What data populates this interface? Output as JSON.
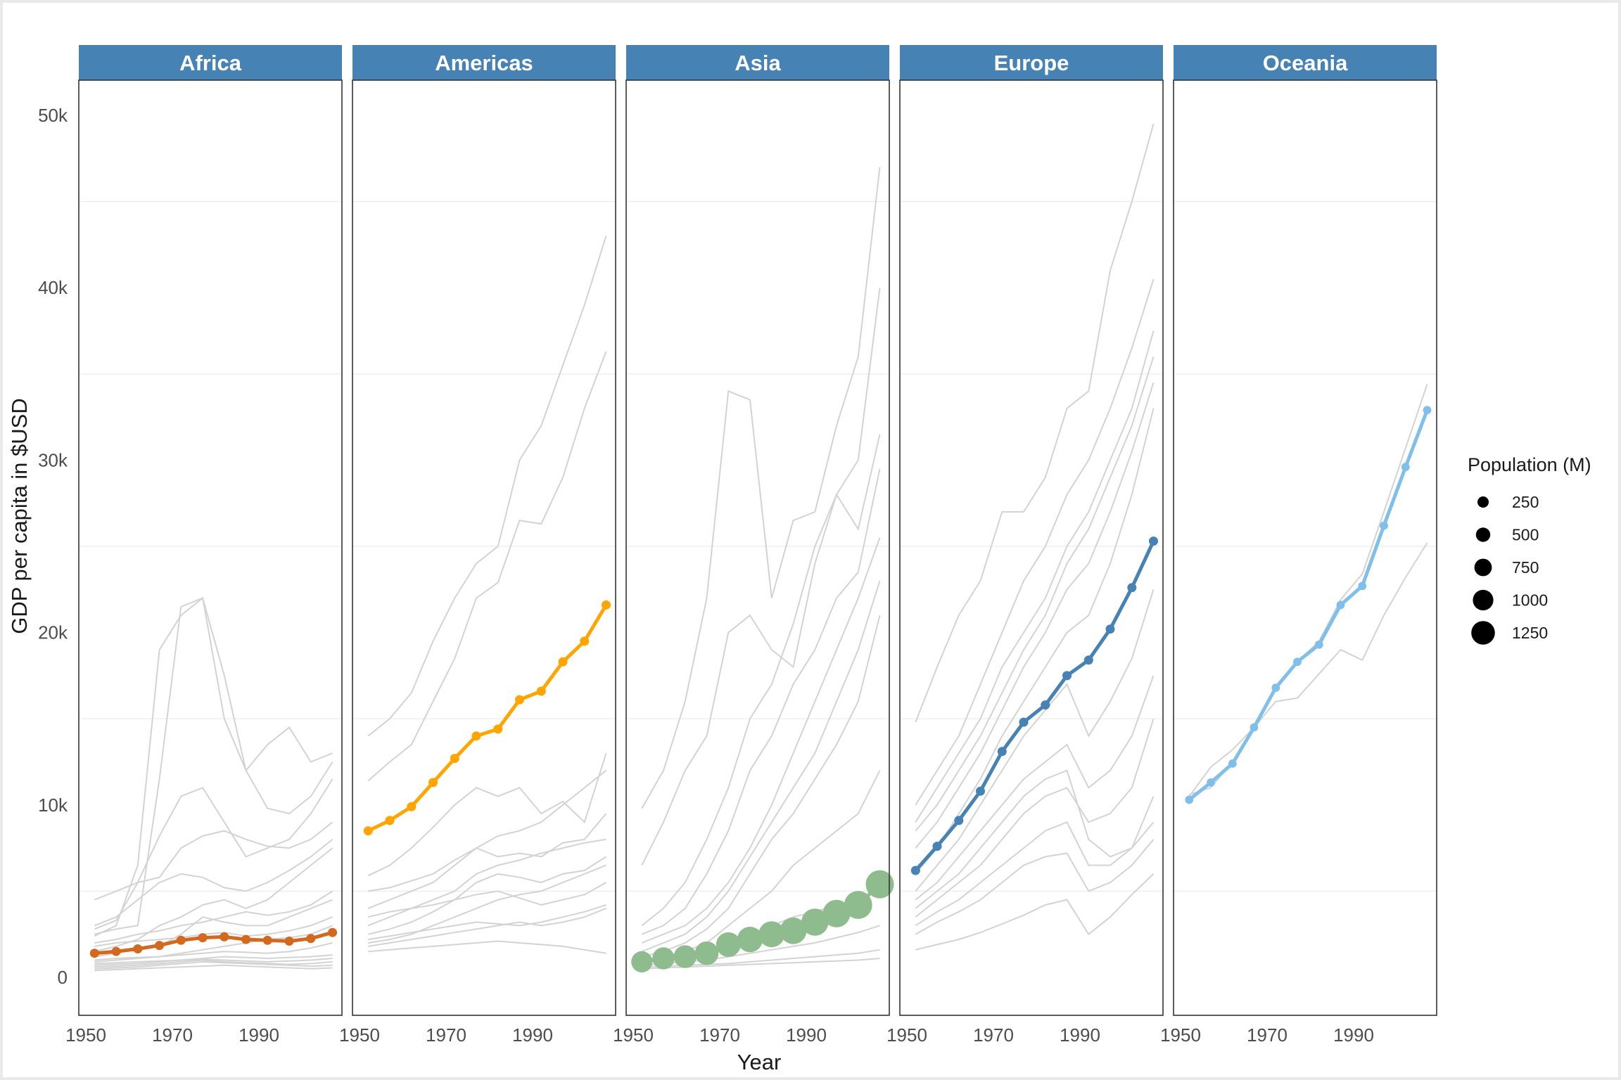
{
  "chart_data": {
    "type": "line",
    "title": "",
    "xlabel": "Year",
    "ylabel": "GDP per capita in $USD",
    "xlim": [
      1952,
      2007
    ],
    "ylim": [
      -2000,
      52000
    ],
    "x_ticks": [
      1950,
      1970,
      1990
    ],
    "y_ticks": [
      0,
      10000,
      20000,
      30000,
      40000,
      50000
    ],
    "y_tick_labels": [
      "0",
      "10k",
      "20k",
      "30k",
      "40k",
      "50k"
    ],
    "years": [
      1952,
      1957,
      1962,
      1967,
      1972,
      1977,
      1982,
      1987,
      1992,
      1997,
      2002,
      2007
    ],
    "background_line_color": "#d3d3d3",
    "strip_color": "#4682b4",
    "legend": {
      "title": "Population (M)",
      "entries": [
        {
          "label": "250",
          "value": 250
        },
        {
          "label": "500",
          "value": 500
        },
        {
          "label": "750",
          "value": 750
        },
        {
          "label": "1000",
          "value": 1000
        },
        {
          "label": "1250",
          "value": 1250
        }
      ]
    },
    "facets": [
      {
        "name": "Africa",
        "highlight_color": "#d2691e",
        "highlight_gdp": [
          1400,
          1500,
          1650,
          1850,
          2150,
          2300,
          2350,
          2200,
          2150,
          2100,
          2250,
          2600
        ],
        "highlight_pop": [
          20,
          20,
          20,
          20,
          20,
          20,
          20,
          20,
          20,
          20,
          20,
          20
        ],
        "countries": [
          [
            2400,
            3000,
            6500,
            19000,
            21000,
            22000,
            15000,
            12000,
            13500,
            14500,
            12500,
            13000
          ],
          [
            2500,
            2800,
            3000,
            11500,
            21500,
            22000,
            17500,
            12000,
            9800,
            9500,
            10500,
            12500
          ],
          [
            4500,
            5000,
            5500,
            5800,
            7500,
            8200,
            8500,
            8000,
            7600,
            7500,
            8000,
            9000
          ],
          [
            2800,
            3300,
            5500,
            8200,
            10500,
            11000,
            9000,
            7000,
            7500,
            8000,
            9500,
            11500
          ],
          [
            3000,
            3500,
            4500,
            5500,
            6000,
            5800,
            5200,
            5000,
            5500,
            6200,
            7000,
            8000
          ],
          [
            1500,
            1800,
            2200,
            3000,
            3500,
            4200,
            4500,
            4000,
            4500,
            5500,
            6500,
            7500
          ],
          [
            2000,
            2200,
            2500,
            2700,
            3000,
            3200,
            3500,
            3800,
            3600,
            3800,
            4200,
            5000
          ],
          [
            1200,
            1400,
            1600,
            1800,
            2500,
            3500,
            3200,
            3000,
            3000,
            3500,
            4000,
            4500
          ],
          [
            1800,
            2000,
            2100,
            2200,
            2300,
            2500,
            2600,
            2400,
            2500,
            2700,
            3000,
            3500
          ],
          [
            900,
            1000,
            1100,
            1200,
            1400,
            1600,
            1800,
            2000,
            2200,
            2300,
            2500,
            3000
          ],
          [
            1000,
            1100,
            1150,
            1200,
            1300,
            1400,
            1500,
            1450,
            1400,
            1500,
            1700,
            2000
          ],
          [
            700,
            750,
            800,
            900,
            1000,
            1100,
            1200,
            1150,
            1100,
            1150,
            1200,
            1300
          ],
          [
            500,
            550,
            600,
            700,
            800,
            900,
            850,
            800,
            750,
            700,
            650,
            700
          ],
          [
            800,
            850,
            900,
            950,
            1000,
            1050,
            1000,
            950,
            900,
            950,
            1000,
            1100
          ],
          [
            400,
            450,
            500,
            550,
            600,
            650,
            700,
            650,
            600,
            550,
            500,
            550
          ],
          [
            600,
            650,
            700,
            800,
            900,
            1000,
            900,
            850,
            800,
            750,
            800,
            900
          ]
        ]
      },
      {
        "name": "Americas",
        "highlight_color": "#ffa500",
        "highlight_gdp": [
          8500,
          9100,
          9900,
          11300,
          12700,
          14000,
          14400,
          16100,
          16600,
          18300,
          19500,
          21600
        ],
        "highlight_pop": [
          20,
          20,
          20,
          20,
          20,
          20,
          20,
          20,
          20,
          20,
          20,
          20
        ],
        "countries": [
          [
            14000,
            15000,
            16500,
            19500,
            22000,
            24000,
            25000,
            30000,
            32000,
            35500,
            39000,
            43000
          ],
          [
            11400,
            12500,
            13500,
            16000,
            18500,
            22000,
            22900,
            26500,
            26300,
            29000,
            33000,
            36300
          ],
          [
            5900,
            6500,
            7500,
            8700,
            10000,
            11000,
            10500,
            11000,
            9500,
            10200,
            9000,
            13000
          ],
          [
            5000,
            5200,
            5600,
            6000,
            6800,
            7500,
            8200,
            8500,
            9000,
            10000,
            11000,
            12000
          ],
          [
            4000,
            4500,
            5000,
            5500,
            6500,
            7500,
            7000,
            7200,
            7000,
            7800,
            8000,
            9500
          ],
          [
            3000,
            3500,
            4000,
            4500,
            5000,
            6000,
            6500,
            6800,
            7200,
            7500,
            7800,
            8000
          ],
          [
            2500,
            2800,
            3200,
            3800,
            4500,
            5500,
            6000,
            5800,
            5500,
            6000,
            6200,
            7000
          ],
          [
            2000,
            2200,
            2500,
            3000,
            3500,
            4000,
            4500,
            4800,
            5000,
            5500,
            6000,
            6500
          ],
          [
            3500,
            3800,
            4000,
            4200,
            4500,
            4800,
            5000,
            4600,
            4200,
            4500,
            4800,
            5500
          ],
          [
            1800,
            2000,
            2200,
            2400,
            2600,
            2800,
            3000,
            3200,
            3000,
            3200,
            3500,
            4000
          ],
          [
            1500,
            1600,
            1700,
            1800,
            1900,
            2000,
            2100,
            2000,
            1900,
            1800,
            1600,
            1400
          ],
          [
            2200,
            2400,
            2600,
            2800,
            3000,
            3200,
            3100,
            3000,
            3200,
            3500,
            3800,
            4200
          ]
        ]
      },
      {
        "name": "Asia",
        "highlight_color": "#8fbc8f",
        "highlight_gdp": [
          900,
          1100,
          1200,
          1400,
          1900,
          2200,
          2500,
          2700,
          3200,
          3700,
          4200,
          5400
        ],
        "highlight_pop": [
          550,
          620,
          680,
          750,
          830,
          910,
          970,
          1030,
          1080,
          1130,
          1170,
          1210
        ],
        "countries": [
          [
            9800,
            12000,
            16000,
            22000,
            34000,
            33500,
            22000,
            26500,
            27000,
            32000,
            36000,
            47000
          ],
          [
            6500,
            9000,
            12000,
            14000,
            20000,
            21000,
            19000,
            18000,
            24000,
            28000,
            30000,
            40000
          ],
          [
            3000,
            4000,
            5500,
            8000,
            11000,
            15000,
            17000,
            20500,
            25000,
            28000,
            26000,
            31500
          ],
          [
            2500,
            3000,
            4000,
            6000,
            8500,
            12000,
            14000,
            17000,
            19000,
            22000,
            23500,
            29500
          ],
          [
            2000,
            2500,
            3000,
            4000,
            5500,
            7500,
            10000,
            13000,
            16000,
            19000,
            22000,
            25500
          ],
          [
            1500,
            2000,
            2500,
            3500,
            5000,
            7000,
            9000,
            11000,
            13000,
            16000,
            19000,
            23000
          ],
          [
            1200,
            1500,
            2000,
            2800,
            4000,
            6000,
            8000,
            9500,
            11500,
            13500,
            16000,
            21000
          ],
          [
            1000,
            1200,
            1500,
            2000,
            3000,
            4000,
            5000,
            6500,
            7500,
            8500,
            9500,
            12000
          ],
          [
            800,
            1000,
            1200,
            1500,
            2000,
            2500,
            3000,
            3500,
            3800,
            4200,
            4500,
            5000
          ],
          [
            700,
            800,
            900,
            1000,
            1200,
            1400,
            1600,
            1800,
            2000,
            2300,
            2600,
            3000
          ],
          [
            600,
            650,
            700,
            750,
            800,
            900,
            1000,
            1100,
            1200,
            1300,
            1400,
            1600
          ],
          [
            500,
            550,
            600,
            650,
            700,
            750,
            800,
            850,
            900,
            950,
            1000,
            1100
          ]
        ]
      },
      {
        "name": "Europe",
        "highlight_color": "#4682b4",
        "highlight_gdp": [
          6200,
          7600,
          9100,
          10800,
          13100,
          14800,
          15800,
          17500,
          18400,
          20200,
          22600,
          25300
        ],
        "highlight_pop": [
          20,
          20,
          20,
          20,
          20,
          20,
          20,
          20,
          20,
          20,
          20,
          20
        ],
        "countries": [
          [
            14800,
            18000,
            21000,
            23000,
            27000,
            27000,
            29000,
            33000,
            34000,
            41000,
            45000,
            49500
          ],
          [
            10000,
            12000,
            14000,
            17000,
            20000,
            23000,
            25000,
            28000,
            30000,
            33000,
            36500,
            40500
          ],
          [
            9000,
            11000,
            13000,
            15000,
            18000,
            20000,
            22000,
            25000,
            27000,
            30000,
            33000,
            37500
          ],
          [
            8500,
            10000,
            12000,
            14000,
            16500,
            19000,
            21000,
            24000,
            26000,
            29000,
            32000,
            36000
          ],
          [
            7500,
            9000,
            11000,
            13000,
            15500,
            18000,
            20000,
            22500,
            24000,
            27000,
            30500,
            34500
          ],
          [
            6000,
            7500,
            9500,
            11500,
            14000,
            16000,
            18000,
            20000,
            21000,
            24000,
            28000,
            33000
          ],
          [
            5000,
            6500,
            8000,
            10000,
            12000,
            14000,
            15500,
            17000,
            14000,
            16000,
            18500,
            22500
          ],
          [
            4500,
            5500,
            7000,
            8500,
            10000,
            11500,
            12500,
            13500,
            11000,
            12000,
            14000,
            17500
          ],
          [
            3500,
            4500,
            5500,
            6500,
            8000,
            9500,
            10500,
            11000,
            9000,
            9500,
            11000,
            15000
          ],
          [
            3000,
            3800,
            4500,
            5500,
            6500,
            7500,
            8500,
            9000,
            6500,
            6500,
            7500,
            10500
          ],
          [
            2500,
            3200,
            3800,
            4500,
            5500,
            6500,
            7000,
            7200,
            5000,
            5500,
            6500,
            8000
          ],
          [
            1600,
            1900,
            2200,
            2600,
            3100,
            3600,
            4200,
            4500,
            2500,
            3500,
            4800,
            6000
          ],
          [
            4000,
            5000,
            6000,
            7500,
            9000,
            10500,
            11500,
            12000,
            8000,
            7000,
            7500,
            9000
          ]
        ]
      },
      {
        "name": "Oceania",
        "highlight_color": "#7fbfea",
        "highlight_gdp": [
          10300,
          11300,
          12400,
          14500,
          16800,
          18300,
          19300,
          21600,
          22700,
          26200,
          29600,
          32900
        ],
        "highlight_pop": [
          10,
          10,
          10,
          10,
          10,
          10,
          10,
          10,
          10,
          10,
          10,
          10
        ],
        "countries": [
          [
            10600,
            11000,
            12500,
            14500,
            16800,
            18300,
            19500,
            21900,
            23400,
            27000,
            30700,
            34400
          ],
          [
            10500,
            12200,
            13200,
            14500,
            16000,
            16200,
            17600,
            19000,
            18400,
            21000,
            23200,
            25200
          ]
        ]
      }
    ]
  }
}
